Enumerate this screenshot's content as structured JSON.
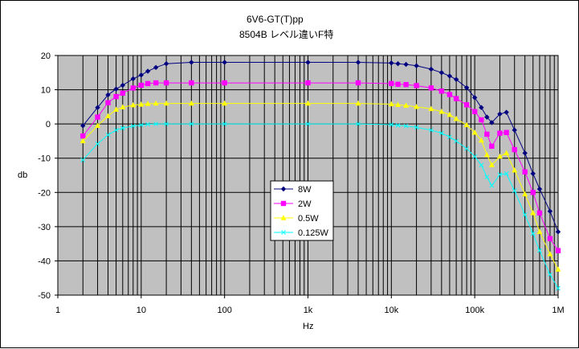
{
  "chart_data": {
    "type": "line",
    "title": "6V6-GT(T)pp",
    "subtitle": "8504B レベル違いF特",
    "xlabel": "Hz",
    "ylabel": "db",
    "xscale": "log",
    "xlim": [
      1,
      1000000
    ],
    "ylim": [
      -50,
      20
    ],
    "grid": true,
    "legend_position": "center-left",
    "x_tick_labels": [
      "1",
      "10",
      "100",
      "1k",
      "10k",
      "100k",
      "1M"
    ],
    "y_tick_values": [
      20,
      10,
      0,
      -10,
      -20,
      -30,
      -40,
      -50
    ],
    "plot_background": "#c0c0c0",
    "x": [
      2,
      3,
      4,
      5,
      6,
      8,
      10,
      12,
      15,
      20,
      40,
      100,
      1000,
      4000,
      10000,
      12000,
      15000,
      20000,
      30000,
      40000,
      50000,
      60000,
      80000,
      100000,
      120000,
      140000,
      160000,
      200000,
      240000,
      300000,
      400000,
      500000,
      600000,
      800000,
      1000000
    ],
    "series": [
      {
        "name": "8W",
        "color": "#000080",
        "marker": "diamond",
        "values": [
          -0.5,
          4.8,
          8.5,
          10.2,
          11.3,
          13.2,
          14.3,
          15.4,
          16.5,
          17.6,
          18,
          18,
          18,
          18,
          17.8,
          17.6,
          17.4,
          17,
          16,
          15,
          14,
          13,
          10.6,
          7.7,
          4.8,
          2,
          0.4,
          2.9,
          3.4,
          -1.8,
          -8.5,
          -14.5,
          -19,
          -25.5,
          -31.5
        ]
      },
      {
        "name": "2W",
        "color": "#ff00ff",
        "marker": "square",
        "values": [
          -3.5,
          2,
          6.2,
          8,
          9,
          10.5,
          11.3,
          11.8,
          12,
          12,
          12,
          12,
          12,
          12,
          11.8,
          11.6,
          11.5,
          11.2,
          10.5,
          9.6,
          8.6,
          7.4,
          5.6,
          3.6,
          1.2,
          -3,
          -6.5,
          -2.7,
          -2.5,
          -7.5,
          -14,
          -20,
          -26,
          -33.5,
          -37
        ]
      },
      {
        "name": "0.5W",
        "color": "#ffff00",
        "marker": "triangle",
        "values": [
          -5,
          -0.5,
          2.3,
          4.2,
          4.9,
          5.5,
          5.7,
          5.9,
          6,
          6,
          6,
          6,
          6,
          6,
          5.8,
          5.6,
          5.4,
          5,
          4.4,
          3.6,
          2.7,
          1.5,
          -0.3,
          -2.5,
          -4.8,
          -9,
          -12,
          -9.5,
          -8.5,
          -13.5,
          -20.5,
          -26,
          -31.5,
          -38,
          -42.5
        ]
      },
      {
        "name": "0.125W",
        "color": "#00ffff",
        "marker": "x",
        "values": [
          -10.5,
          -5.8,
          -3.2,
          -1.8,
          -1.2,
          -0.6,
          -0.3,
          -0.1,
          0,
          0,
          0,
          0,
          0,
          0,
          -0.2,
          -0.4,
          -0.6,
          -1,
          -1.8,
          -2.7,
          -3.8,
          -5,
          -7.2,
          -9.5,
          -12,
          -15.5,
          -18,
          -14.8,
          -14.5,
          -19.5,
          -26.5,
          -32,
          -37,
          -44,
          -48
        ]
      }
    ]
  }
}
